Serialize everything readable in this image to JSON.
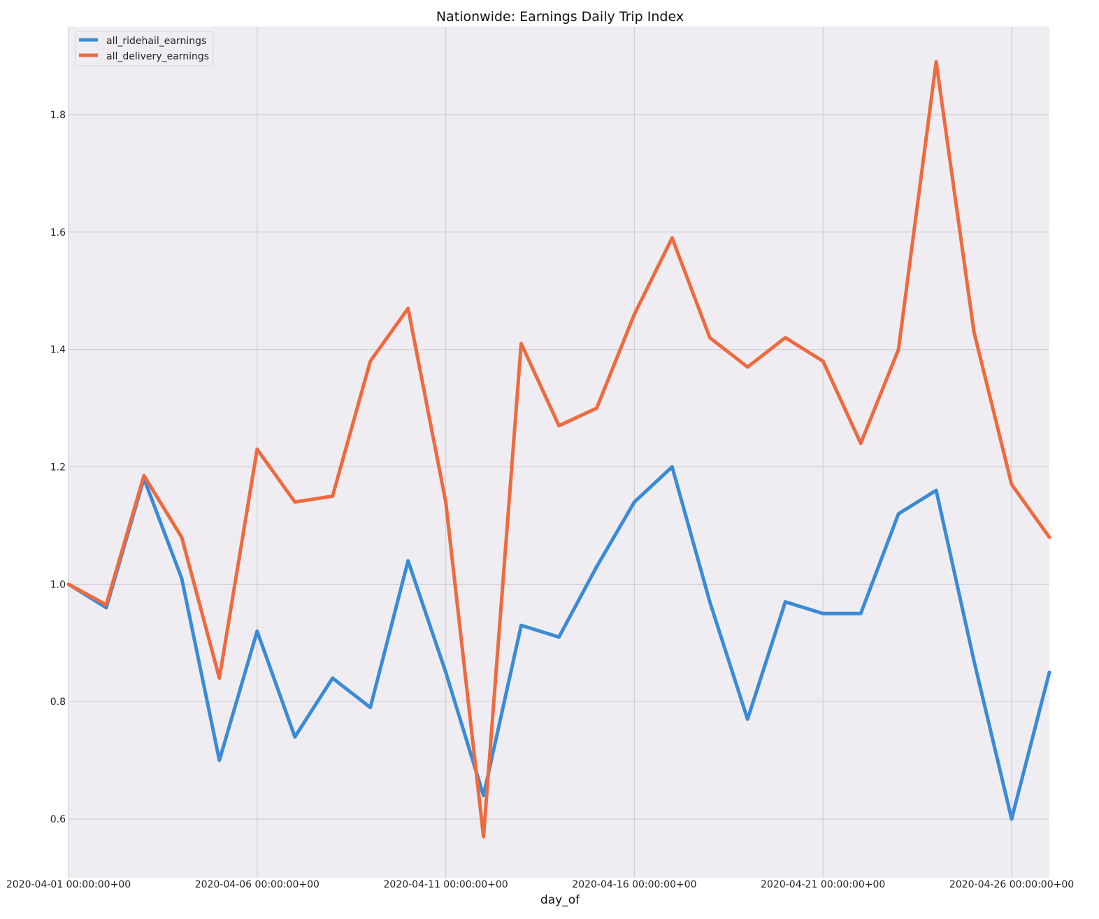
{
  "chart_data": {
    "type": "line",
    "title": "Nationwide: Earnings Daily Trip Index",
    "xlabel": "day_of",
    "ylabel": "",
    "x": [
      "2020-04-01",
      "2020-04-02",
      "2020-04-03",
      "2020-04-04",
      "2020-04-05",
      "2020-04-06",
      "2020-04-07",
      "2020-04-08",
      "2020-04-09",
      "2020-04-10",
      "2020-04-11",
      "2020-04-12",
      "2020-04-13",
      "2020-04-14",
      "2020-04-15",
      "2020-04-16",
      "2020-04-17",
      "2020-04-18",
      "2020-04-19",
      "2020-04-20",
      "2020-04-21",
      "2020-04-22",
      "2020-04-23",
      "2020-04-24",
      "2020-04-25",
      "2020-04-26",
      "2020-04-27"
    ],
    "x_index_range": [
      0,
      26
    ],
    "x_ticks": [
      {
        "index": 0,
        "label": "2020-04-01 00:00:00+00"
      },
      {
        "index": 5,
        "label": "2020-04-06 00:00:00+00"
      },
      {
        "index": 10,
        "label": "2020-04-11 00:00:00+00"
      },
      {
        "index": 15,
        "label": "2020-04-16 00:00:00+00"
      },
      {
        "index": 20,
        "label": "2020-04-21 00:00:00+00"
      },
      {
        "index": 25,
        "label": "2020-04-26 00:00:00+00"
      }
    ],
    "ylim": [
      0.5,
      1.95
    ],
    "y_ticks": [
      0.6,
      0.8,
      1.0,
      1.2,
      1.4,
      1.6,
      1.8
    ],
    "y_tick_labels": [
      "0.6",
      "0.8",
      "1.0",
      "1.2",
      "1.4",
      "1.6",
      "1.8"
    ],
    "grid": true,
    "legend_position": "top-left",
    "series": [
      {
        "name": "all_ridehail_earnings",
        "color": "#3a8bd6",
        "values": [
          1.0,
          0.96,
          1.18,
          1.01,
          0.7,
          0.92,
          0.74,
          0.84,
          0.79,
          1.04,
          0.85,
          0.64,
          0.93,
          0.91,
          1.03,
          1.14,
          1.2,
          0.97,
          0.77,
          0.97,
          0.95,
          0.95,
          1.12,
          1.16,
          0.87,
          0.6,
          0.85
        ]
      },
      {
        "name": "all_delivery_earnings",
        "color": "#ee6a3f",
        "values": [
          1.0,
          0.965,
          1.185,
          1.08,
          0.84,
          1.23,
          1.14,
          1.15,
          1.38,
          1.47,
          1.14,
          0.57,
          1.41,
          1.27,
          1.3,
          1.46,
          1.59,
          1.42,
          1.37,
          1.42,
          1.38,
          1.24,
          1.4,
          1.89,
          1.43,
          1.17,
          1.08
        ]
      }
    ]
  }
}
